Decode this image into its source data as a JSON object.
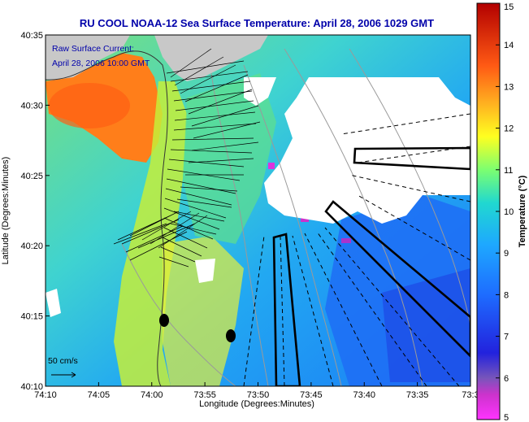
{
  "title": "RU COOL  NOAA-12  Sea Surface Temperature:  April 28, 2006 1029 GMT",
  "annotations": {
    "current_line1": "Raw Surface Current:",
    "current_line2": "April 28, 2006 10:00 GMT",
    "scale_label": "50 cm/s"
  },
  "axes": {
    "xlabel": "Longitude (Degrees:Minutes)",
    "ylabel": "Latitude (Degrees:Minutes)",
    "x_ticks": [
      "74:10",
      "74:05",
      "74:00",
      "73:55",
      "73:50",
      "73:45",
      "73:40",
      "73:35",
      "73:3"
    ],
    "y_ticks": [
      "40:35",
      "40:30",
      "40:25",
      "40:20",
      "40:15",
      "40:10"
    ]
  },
  "colorbar": {
    "label": "Temperature (°C)",
    "ticks": [
      "15",
      "14",
      "13",
      "12",
      "11",
      "10",
      "9",
      "8",
      "7",
      "6",
      "5"
    ],
    "range": [
      5,
      15
    ]
  },
  "colors": {
    "title": "#0000aa",
    "annotation": "#0000aa",
    "land_gray": "#c8c8c8",
    "cloud_white": "#ffffff"
  }
}
